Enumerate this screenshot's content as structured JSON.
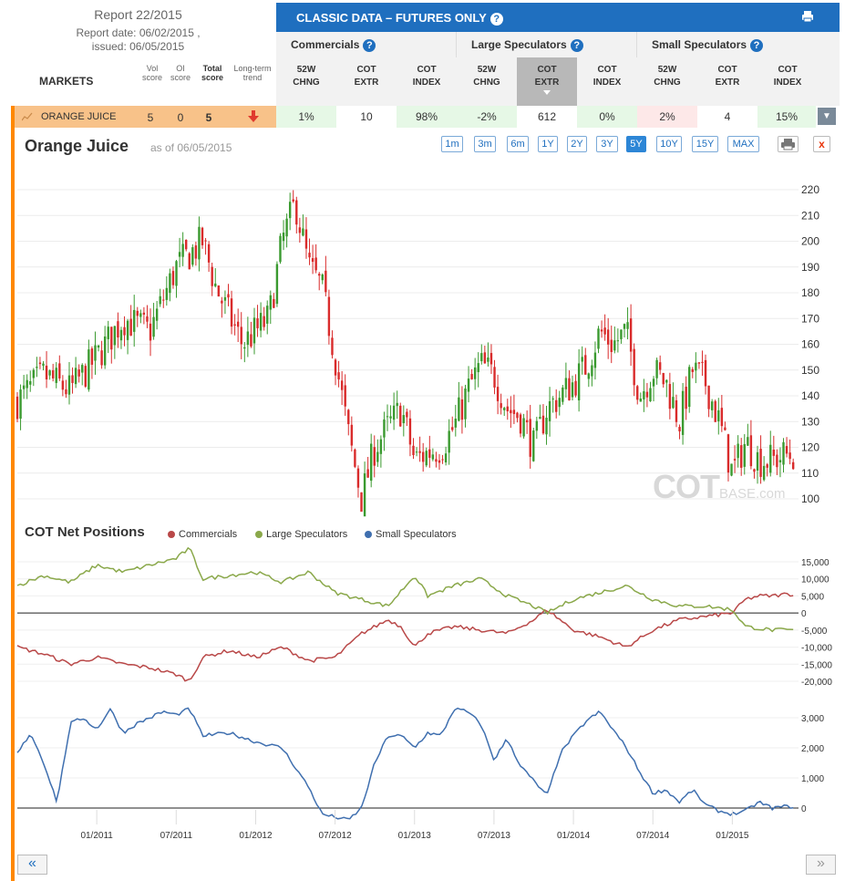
{
  "report": {
    "title": "Report 22/2015",
    "date_line": "Report date: 06/02/2015 ,",
    "issued_line": "issued: 06/05/2015"
  },
  "markets_header": {
    "label": "MARKETS",
    "cols": [
      {
        "l1": "Vol",
        "l2": "score"
      },
      {
        "l1": "OI",
        "l2": "score"
      },
      {
        "l1": "Total",
        "l2": "score"
      },
      {
        "l1": "Long-term",
        "l2": "trend"
      }
    ]
  },
  "classic": {
    "title": "CLASSIC DATA – FUTURES ONLY",
    "help": "?"
  },
  "groups": [
    {
      "label": "Commercials",
      "help": "?"
    },
    {
      "label": "Large Speculators",
      "help": "?"
    },
    {
      "label": "Small Speculators",
      "help": "?"
    }
  ],
  "subcols": [
    {
      "l1": "52W",
      "l2": "CHNG"
    },
    {
      "l1": "COT",
      "l2": "EXTR"
    },
    {
      "l1": "COT",
      "l2": "INDEX"
    },
    {
      "l1": "52W",
      "l2": "CHNG"
    },
    {
      "l1": "COT",
      "l2": "EXTR"
    },
    {
      "l1": "COT",
      "l2": "INDEX"
    },
    {
      "l1": "52W",
      "l2": "CHNG"
    },
    {
      "l1": "COT",
      "l2": "EXTR"
    },
    {
      "l1": "COT",
      "l2": "INDEX"
    }
  ],
  "market_row": {
    "name": "ORANGE JUICE",
    "vol": "5",
    "oi": "0",
    "total": "5",
    "trend_icon": "red-down-arrow-icon",
    "cells": [
      "1%",
      "10",
      "98%",
      "-2%",
      "612",
      "0%",
      "2%",
      "4",
      "15%"
    ],
    "cell_colors": [
      "#e6f8e6",
      "#ffffff",
      "#e6f8e6",
      "#e6f8e6",
      "#ffffff",
      "#e6f8e6",
      "#fde8e8",
      "#ffffff",
      "#e6f8e6"
    ]
  },
  "chart": {
    "title": "Orange Juice",
    "asof": "as of 06/05/2015",
    "ranges": [
      "1m",
      "3m",
      "6m",
      "1Y",
      "2Y",
      "3Y",
      "5Y",
      "10Y",
      "15Y",
      "MAX"
    ],
    "active_range": "5Y",
    "close": "x",
    "watermark_main": "COT",
    "watermark_sub": "BASE.com"
  },
  "cot": {
    "title": "COT Net Positions",
    "legend": [
      "Commercials",
      "Large Speculators",
      "Small Speculators"
    ]
  },
  "colors": {
    "commercials": "#b94848",
    "large": "#8aa84a",
    "small": "#3f6faf",
    "up_candle": "#3a9a2f",
    "down_candle": "#d92b2b",
    "accent": "#1f6fbf",
    "orange": "#ff8800"
  },
  "nav": {
    "prev": "«",
    "next": "»"
  },
  "chart_data": [
    {
      "type": "candlestick",
      "title": "Orange Juice",
      "y_ticks": [
        100,
        110,
        120,
        130,
        140,
        150,
        160,
        170,
        180,
        190,
        200,
        210,
        220
      ],
      "ylim": [
        100,
        222
      ],
      "x_ticks": [
        "01/2011",
        "07/2011",
        "01/2012",
        "07/2012",
        "01/2013",
        "07/2013",
        "01/2014",
        "07/2014",
        "01/2015"
      ],
      "x_tick_months": [
        6,
        12,
        18,
        24,
        30,
        36,
        42,
        48,
        54
      ],
      "xlim_months": [
        0,
        59
      ],
      "close_by_month": [
        [
          0,
          138
        ],
        [
          2,
          148
        ],
        [
          4,
          142
        ],
        [
          6,
          155
        ],
        [
          8,
          170
        ],
        [
          10,
          165
        ],
        [
          12,
          190
        ],
        [
          14,
          200
        ],
        [
          15,
          182
        ],
        [
          17,
          160
        ],
        [
          18,
          165
        ],
        [
          19,
          170
        ],
        [
          20,
          200
        ],
        [
          21,
          215
        ],
        [
          22,
          190
        ],
        [
          23,
          182
        ],
        [
          24,
          155
        ],
        [
          25,
          125
        ],
        [
          26,
          100
        ],
        [
          27,
          120
        ],
        [
          28,
          128
        ],
        [
          29,
          135
        ],
        [
          30,
          115
        ],
        [
          31,
          118
        ],
        [
          32,
          120
        ],
        [
          33,
          128
        ],
        [
          34,
          142
        ],
        [
          35,
          152
        ],
        [
          36,
          148
        ],
        [
          37,
          135
        ],
        [
          38,
          132
        ],
        [
          39,
          120
        ],
        [
          40,
          135
        ],
        [
          41,
          140
        ],
        [
          42,
          145
        ],
        [
          43,
          152
        ],
        [
          44,
          165
        ],
        [
          45,
          160
        ],
        [
          46,
          165
        ],
        [
          47,
          140
        ],
        [
          48,
          150
        ],
        [
          49,
          145
        ],
        [
          50,
          130
        ],
        [
          51,
          150
        ],
        [
          52,
          145
        ],
        [
          53,
          130
        ],
        [
          54,
          110
        ],
        [
          55,
          122
        ],
        [
          56,
          115
        ],
        [
          57,
          115
        ],
        [
          58,
          117
        ]
      ]
    },
    {
      "type": "line",
      "title": "COT Net Positions",
      "y_ticks": [
        -20000,
        -15000,
        -10000,
        -5000,
        0,
        5000,
        10000,
        15000
      ],
      "ylim": [
        -20000,
        18000
      ],
      "xlim_months": [
        0,
        59
      ],
      "series": [
        {
          "name": "Commercials",
          "points": [
            [
              0,
              -10000
            ],
            [
              2,
              -12000
            ],
            [
              4,
              -15000
            ],
            [
              6,
              -13000
            ],
            [
              8,
              -15000
            ],
            [
              10,
              -16000
            ],
            [
              12,
              -18000
            ],
            [
              13,
              -20000
            ],
            [
              14,
              -13000
            ],
            [
              16,
              -11000
            ],
            [
              18,
              -13000
            ],
            [
              20,
              -10000
            ],
            [
              22,
              -14000
            ],
            [
              24,
              -13000
            ],
            [
              26,
              -6000
            ],
            [
              28,
              -2000
            ],
            [
              29,
              -4000
            ],
            [
              30,
              -10000
            ],
            [
              31,
              -6000
            ],
            [
              33,
              -4000
            ],
            [
              35,
              -5000
            ],
            [
              37,
              -6000
            ],
            [
              39,
              -2000
            ],
            [
              40,
              1000
            ],
            [
              42,
              -5000
            ],
            [
              44,
              -7000
            ],
            [
              46,
              -10000
            ],
            [
              48,
              -5000
            ],
            [
              50,
              -2000
            ],
            [
              51,
              -1500
            ],
            [
              52,
              -1000
            ],
            [
              54,
              0
            ],
            [
              55,
              4000
            ],
            [
              56,
              5000
            ],
            [
              57,
              5000
            ],
            [
              58,
              5500
            ]
          ]
        },
        {
          "name": "Large Speculators",
          "points": [
            [
              0,
              8000
            ],
            [
              2,
              11000
            ],
            [
              4,
              9000
            ],
            [
              6,
              14000
            ],
            [
              8,
              12000
            ],
            [
              10,
              14000
            ],
            [
              12,
              16000
            ],
            [
              13,
              19000
            ],
            [
              14,
              10000
            ],
            [
              16,
              11000
            ],
            [
              18,
              12000
            ],
            [
              20,
              9000
            ],
            [
              22,
              12000
            ],
            [
              24,
              6000
            ],
            [
              26,
              4000
            ],
            [
              28,
              2000
            ],
            [
              30,
              11000
            ],
            [
              31,
              5000
            ],
            [
              33,
              8000
            ],
            [
              35,
              10000
            ],
            [
              37,
              5000
            ],
            [
              39,
              2000
            ],
            [
              40,
              0
            ],
            [
              42,
              4000
            ],
            [
              44,
              6000
            ],
            [
              46,
              8000
            ],
            [
              48,
              4000
            ],
            [
              50,
              2000
            ],
            [
              52,
              2000
            ],
            [
              54,
              1000
            ],
            [
              55,
              -4000
            ],
            [
              56,
              -4500
            ],
            [
              57,
              -5000
            ],
            [
              58,
              -5000
            ]
          ]
        }
      ]
    },
    {
      "type": "line",
      "y_ticks": [
        0,
        1000,
        2000,
        3000
      ],
      "ylim": [
        -450,
        3550
      ],
      "xlim_months": [
        0,
        59
      ],
      "series": [
        {
          "name": "Small Speculators",
          "points": [
            [
              0,
              1800
            ],
            [
              1,
              2500
            ],
            [
              2,
              1500
            ],
            [
              3,
              200
            ],
            [
              4,
              2800
            ],
            [
              5,
              3000
            ],
            [
              6,
              2600
            ],
            [
              7,
              3300
            ],
            [
              8,
              2500
            ],
            [
              9,
              2800
            ],
            [
              10,
              3000
            ],
            [
              11,
              3200
            ],
            [
              12,
              3100
            ],
            [
              13,
              3300
            ],
            [
              14,
              2400
            ],
            [
              16,
              2500
            ],
            [
              18,
              2200
            ],
            [
              20,
              2000
            ],
            [
              22,
              700
            ],
            [
              23,
              -200
            ],
            [
              24,
              -300
            ],
            [
              25,
              -400
            ],
            [
              26,
              0
            ],
            [
              27,
              1500
            ],
            [
              28,
              2400
            ],
            [
              29,
              2400
            ],
            [
              30,
              2000
            ],
            [
              31,
              2500
            ],
            [
              32,
              2400
            ],
            [
              33,
              3300
            ],
            [
              34,
              3200
            ],
            [
              35,
              2800
            ],
            [
              36,
              1600
            ],
            [
              37,
              2300
            ],
            [
              38,
              1400
            ],
            [
              39,
              900
            ],
            [
              40,
              400
            ],
            [
              41,
              1800
            ],
            [
              42,
              2400
            ],
            [
              43,
              2900
            ],
            [
              44,
              3200
            ],
            [
              45,
              2600
            ],
            [
              46,
              2000
            ],
            [
              47,
              1200
            ],
            [
              48,
              500
            ],
            [
              49,
              600
            ],
            [
              50,
              200
            ],
            [
              51,
              600
            ],
            [
              52,
              100
            ],
            [
              53,
              -100
            ],
            [
              54,
              -200
            ],
            [
              55,
              -100
            ],
            [
              56,
              200
            ],
            [
              57,
              0
            ],
            [
              58,
              50
            ]
          ]
        }
      ]
    }
  ]
}
